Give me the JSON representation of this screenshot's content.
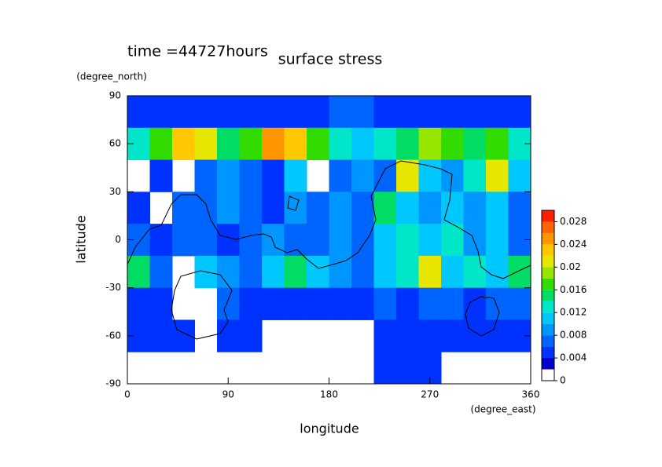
{
  "chart_data": {
    "type": "contour",
    "title": "surface stress",
    "subtitle": "time =44727hours",
    "x_label": "longitude",
    "x_unit": "(degree_east)",
    "y_label": "latitude",
    "y_unit": "(degree_north)",
    "x": [
      10,
      30,
      50,
      70,
      90,
      110,
      130,
      150,
      170,
      190,
      210,
      230,
      250,
      270,
      290,
      310,
      330,
      350
    ],
    "y": [
      80,
      60,
      40,
      20,
      0,
      -20,
      -40,
      -60,
      -80
    ],
    "z": [
      [
        0.004,
        0.004,
        0.004,
        0.004,
        0.004,
        0.004,
        0.004,
        0.004,
        0.004,
        0.006,
        0.006,
        0.004,
        0.004,
        0.004,
        0.004,
        0.004,
        0.004,
        0.004
      ],
      [
        0.012,
        0.016,
        0.022,
        0.02,
        0.014,
        0.016,
        0.024,
        0.022,
        0.016,
        0.012,
        0.01,
        0.012,
        0.014,
        0.018,
        0.016,
        0.014,
        0.016,
        0.012
      ],
      [
        null,
        0.004,
        null,
        0.006,
        0.008,
        0.006,
        0.004,
        0.01,
        null,
        0.006,
        0.008,
        0.006,
        0.02,
        0.01,
        0.008,
        0.012,
        0.02,
        0.01
      ],
      [
        0.004,
        null,
        0.006,
        0.006,
        0.008,
        0.006,
        0.004,
        0.008,
        0.006,
        0.008,
        0.006,
        0.014,
        0.01,
        0.008,
        0.01,
        0.008,
        0.01,
        0.006
      ],
      [
        0.006,
        0.004,
        0.006,
        0.006,
        0.004,
        0.006,
        0.008,
        0.006,
        0.006,
        0.008,
        0.006,
        0.01,
        0.012,
        0.01,
        0.012,
        0.008,
        0.01,
        0.006
      ],
      [
        0.014,
        0.006,
        null,
        0.01,
        0.008,
        0.006,
        0.01,
        0.014,
        0.01,
        0.008,
        0.006,
        0.01,
        0.012,
        0.02,
        0.01,
        0.012,
        0.01,
        0.014
      ],
      [
        0.004,
        0.004,
        null,
        null,
        0.006,
        0.004,
        0.004,
        0.004,
        0.004,
        0.004,
        0.004,
        0.006,
        0.004,
        0.006,
        0.006,
        0.004,
        0.006,
        0.006
      ],
      [
        0.004,
        0.004,
        0.004,
        null,
        0.004,
        0.004,
        null,
        null,
        null,
        null,
        null,
        0.004,
        0.004,
        0.004,
        0.004,
        0.004,
        0.004,
        0.004
      ],
      [
        null,
        null,
        null,
        null,
        null,
        null,
        null,
        null,
        null,
        null,
        null,
        0.004,
        0.004,
        0.004,
        null,
        null,
        null,
        null
      ]
    ],
    "xlim": [
      0,
      360
    ],
    "xticks": [
      0,
      90,
      180,
      270,
      360
    ],
    "ylim": [
      -90,
      90
    ],
    "yticks": [
      -90,
      -60,
      -30,
      0,
      30,
      60,
      90
    ],
    "levels": [
      0,
      0.002,
      0.004,
      0.006,
      0.008,
      0.01,
      0.012,
      0.014,
      0.016,
      0.018,
      0.02,
      0.022,
      0.024,
      0.026,
      0.028,
      0.03
    ],
    "colors": [
      "#ffffff",
      "#0000c8",
      "#0032ff",
      "#0064ff",
      "#0096ff",
      "#00c8ff",
      "#00e6c8",
      "#00dc64",
      "#32dc00",
      "#96e600",
      "#e6e600",
      "#ffc800",
      "#ff9600",
      "#ff6400",
      "#ff1e00"
    ],
    "clim": [
      0,
      0.03
    ],
    "cticks": [
      0,
      0.004,
      0.008,
      0.012,
      0.016,
      0.02,
      0.024,
      0.028
    ]
  }
}
